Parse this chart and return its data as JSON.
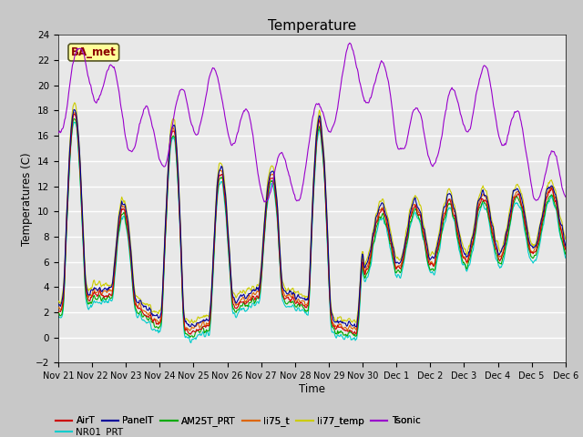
{
  "title": "Temperature",
  "xlabel": "Time",
  "ylabel": "Temperatures (C)",
  "ylim": [
    -2,
    24
  ],
  "yticks": [
    -2,
    0,
    2,
    4,
    6,
    8,
    10,
    12,
    14,
    16,
    18,
    20,
    22,
    24
  ],
  "fig_bg_color": "#c8c8c8",
  "plot_bg_color": "#e8e8e8",
  "annotation_text": "BA_met",
  "annotation_bg": "#ffff99",
  "annotation_border": "#8b0000",
  "series_colors": {
    "AirT": "#cc0000",
    "PanelT": "#000099",
    "AM25T_PRT": "#00aa00",
    "li75_t": "#dd6600",
    "li77_temp": "#cccc00",
    "Tsonic": "#9900cc",
    "NR01_PRT": "#00cccc"
  },
  "tick_labels": [
    "Nov 21",
    "Nov 22",
    "Nov 23",
    "Nov 24",
    "Nov 25",
    "Nov 26",
    "Nov 27",
    "Nov 28",
    "Nov 29",
    "Nov 30",
    "Dec 1",
    "Dec 2",
    "Dec 3",
    "Dec 4",
    "Dec 5",
    "Dec 6"
  ],
  "n_points": 720
}
